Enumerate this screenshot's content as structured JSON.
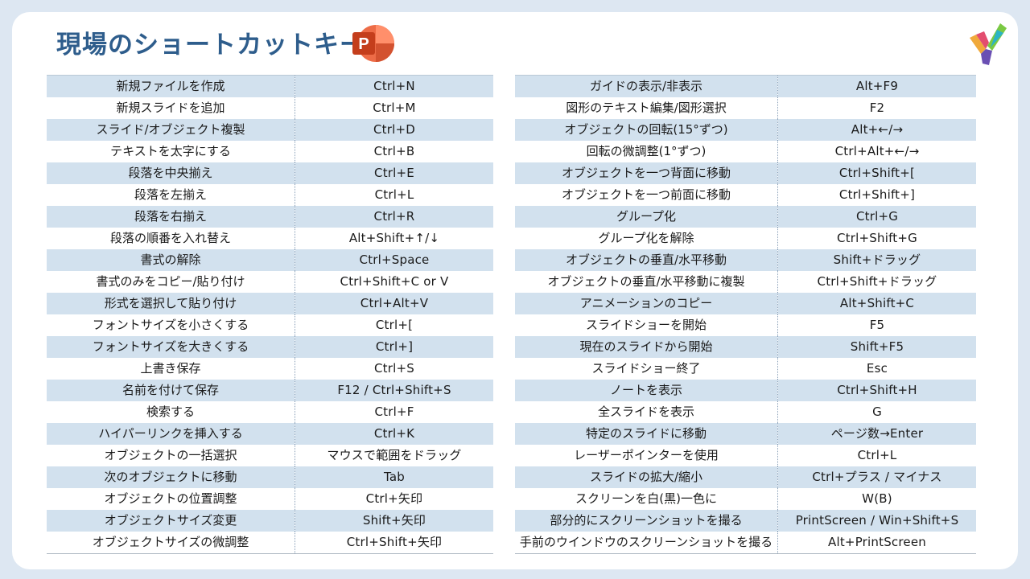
{
  "title": "現場のショートカットキー",
  "colors": {
    "title": "#2e5d8c",
    "stripe": "#d2e1ee",
    "background": "#dde7f2",
    "ppt_icon": "#c43e1c"
  },
  "icons": {
    "app": "powerpoint-icon",
    "brand": "brand-logo"
  },
  "ppt_icon_letter": "P",
  "left_table": [
    {
      "action": "新規ファイルを作成",
      "keys": "Ctrl+N"
    },
    {
      "action": "新規スライドを追加",
      "keys": "Ctrl+M"
    },
    {
      "action": "スライド/オブジェクト複製",
      "keys": "Ctrl+D"
    },
    {
      "action": "テキストを太字にする",
      "keys": "Ctrl+B"
    },
    {
      "action": "段落を中央揃え",
      "keys": "Ctrl+E"
    },
    {
      "action": "段落を左揃え",
      "keys": "Ctrl+L"
    },
    {
      "action": "段落を右揃え",
      "keys": "Ctrl+R"
    },
    {
      "action": "段落の順番を入れ替え",
      "keys": "Alt+Shift+↑/↓"
    },
    {
      "action": "書式の解除",
      "keys": "Ctrl+Space"
    },
    {
      "action": "書式のみをコピー/貼り付け",
      "keys": "Ctrl+Shift+C or V"
    },
    {
      "action": "形式を選択して貼り付け",
      "keys": "Ctrl+Alt+V"
    },
    {
      "action": "フォントサイズを小さくする",
      "keys": "Ctrl+["
    },
    {
      "action": "フォントサイズを大きくする",
      "keys": "Ctrl+]"
    },
    {
      "action": "上書き保存",
      "keys": "Ctrl+S"
    },
    {
      "action": "名前を付けて保存",
      "keys": "F12 / Ctrl+Shift+S"
    },
    {
      "action": "検索する",
      "keys": "Ctrl+F"
    },
    {
      "action": "ハイパーリンクを挿入する",
      "keys": "Ctrl+K"
    },
    {
      "action": "オブジェクトの一括選択",
      "keys": "マウスで範囲をドラッグ"
    },
    {
      "action": "次のオブジェクトに移動",
      "keys": "Tab"
    },
    {
      "action": "オブジェクトの位置調整",
      "keys": "Ctrl+矢印"
    },
    {
      "action": "オブジェクトサイズ変更",
      "keys": "Shift+矢印"
    },
    {
      "action": "オブジェクトサイズの微調整",
      "keys": "Ctrl+Shift+矢印"
    }
  ],
  "right_table": [
    {
      "action": "ガイドの表示/非表示",
      "keys": "Alt+F9"
    },
    {
      "action": "図形のテキスト編集/図形選択",
      "keys": "F2"
    },
    {
      "action": "オブジェクトの回転(15°ずつ)",
      "keys": "Alt+←/→"
    },
    {
      "action": "回転の微調整(1°ずつ)",
      "keys": "Ctrl+Alt+←/→"
    },
    {
      "action": "オブジェクトを一つ背面に移動",
      "keys": "Ctrl+Shift+["
    },
    {
      "action": "オブジェクトを一つ前面に移動",
      "keys": "Ctrl+Shift+]"
    },
    {
      "action": "グループ化",
      "keys": "Ctrl+G"
    },
    {
      "action": "グループ化を解除",
      "keys": "Ctrl+Shift+G"
    },
    {
      "action": "オブジェクトの垂直/水平移動",
      "keys": "Shift+ドラッグ"
    },
    {
      "action": "オブジェクトの垂直/水平移動に複製",
      "keys": "Ctrl+Shift+ドラッグ"
    },
    {
      "action": "アニメーションのコピー",
      "keys": "Alt+Shift+C"
    },
    {
      "action": "スライドショーを開始",
      "keys": "F5"
    },
    {
      "action": "現在のスライドから開始",
      "keys": "Shift+F5"
    },
    {
      "action": "スライドショー終了",
      "keys": "Esc"
    },
    {
      "action": "ノートを表示",
      "keys": "Ctrl+Shift+H"
    },
    {
      "action": "全スライドを表示",
      "keys": "G"
    },
    {
      "action": "特定のスライドに移動",
      "keys": "ページ数→Enter"
    },
    {
      "action": "レーザーポインターを使用",
      "keys": "Ctrl+L"
    },
    {
      "action": "スライドの拡大/縮小",
      "keys": "Ctrl+プラス / マイナス"
    },
    {
      "action": "スクリーンを白(黒)一色に",
      "keys": "W(B)"
    },
    {
      "action": "部分的にスクリーンショットを撮る",
      "keys": "PrintScreen / Win+Shift+S"
    },
    {
      "action": "手前のウインドウのスクリーンショットを撮る",
      "keys": "Alt+PrintScreen"
    }
  ]
}
